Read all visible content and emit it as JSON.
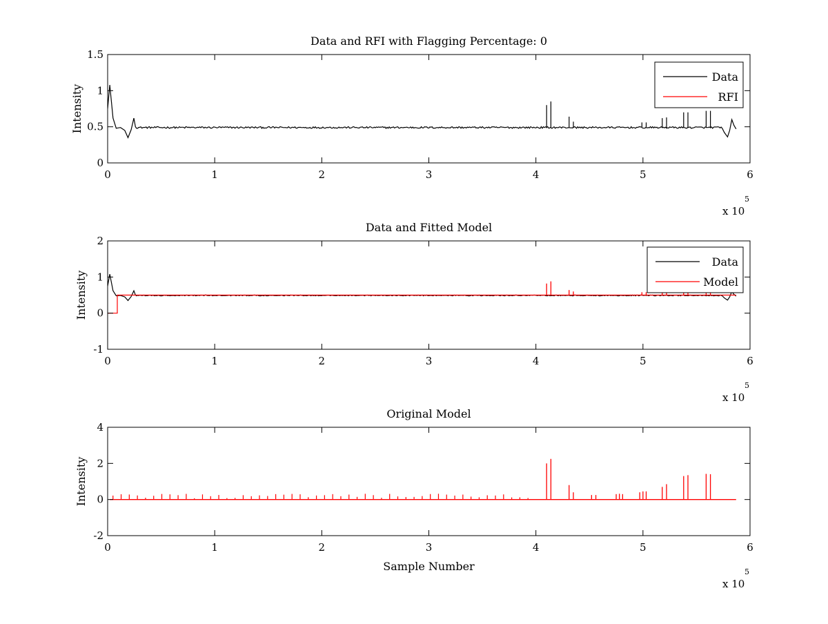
{
  "chart_data": [
    {
      "type": "line",
      "title": "Data and RFI with Flagging Percentage: 0",
      "xlabel": "",
      "ylabel": "Intensity",
      "xlim": [
        0,
        600000
      ],
      "ylim": [
        0,
        1.5
      ],
      "x_ticks": [
        "0",
        "1",
        "2",
        "3",
        "4",
        "5",
        "6"
      ],
      "y_ticks": [
        "0",
        "0.5",
        "1",
        "1.5"
      ],
      "x_multiplier": {
        "base": "x 10",
        "exponent": "5"
      },
      "legend": {
        "position": "top-right",
        "entries": [
          "Data",
          "RFI"
        ]
      },
      "series": [
        {
          "name": "Data",
          "color": "#000000",
          "baseline": 0.49,
          "noise": 0.012,
          "features": [
            {
              "x": 0,
              "y": 0.75
            },
            {
              "x": 2000,
              "y": 1.08
            },
            {
              "x": 5000,
              "y": 0.62
            },
            {
              "x": 8000,
              "y": 0.48
            },
            {
              "x": 12000,
              "y": 0.49
            },
            {
              "x": 16000,
              "y": 0.45
            },
            {
              "x": 19000,
              "y": 0.35
            },
            {
              "x": 22000,
              "y": 0.46
            },
            {
              "x": 24500,
              "y": 0.62
            },
            {
              "x": 26000,
              "y": 0.5
            },
            {
              "x": 574000,
              "y": 0.48
            },
            {
              "x": 576000,
              "y": 0.42
            },
            {
              "x": 579000,
              "y": 0.36
            },
            {
              "x": 581000,
              "y": 0.45
            },
            {
              "x": 583000,
              "y": 0.6
            },
            {
              "x": 585000,
              "y": 0.52
            },
            {
              "x": 587000,
              "y": 0.47
            }
          ],
          "spikes": [
            {
              "x": 410000,
              "y": 0.8
            },
            {
              "x": 414000,
              "y": 0.85
            },
            {
              "x": 431000,
              "y": 0.64
            },
            {
              "x": 435000,
              "y": 0.57
            },
            {
              "x": 499000,
              "y": 0.56
            },
            {
              "x": 503000,
              "y": 0.56
            },
            {
              "x": 518000,
              "y": 0.62
            },
            {
              "x": 522000,
              "y": 0.63
            },
            {
              "x": 538000,
              "y": 0.7
            },
            {
              "x": 542000,
              "y": 0.7
            },
            {
              "x": 559000,
              "y": 0.72
            },
            {
              "x": 563000,
              "y": 0.72
            }
          ]
        },
        {
          "name": "RFI",
          "color": "#ff0000",
          "values": []
        }
      ]
    },
    {
      "type": "line",
      "title": "Data and Fitted Model",
      "xlabel": "",
      "ylabel": "Intensity",
      "xlim": [
        0,
        600000
      ],
      "ylim": [
        -1,
        2
      ],
      "x_ticks": [
        "0",
        "1",
        "2",
        "3",
        "4",
        "5",
        "6"
      ],
      "y_ticks": [
        "-1",
        "0",
        "1",
        "2"
      ],
      "x_multiplier": {
        "base": "x 10",
        "exponent": "5"
      },
      "legend": {
        "position": "top-right",
        "entries": [
          "Data",
          "Model"
        ]
      },
      "series": [
        {
          "name": "Data",
          "color": "#000000",
          "baseline": 0.49,
          "noise": 0.012,
          "features": [
            {
              "x": 0,
              "y": 0.75
            },
            {
              "x": 2000,
              "y": 1.08
            },
            {
              "x": 5000,
              "y": 0.62
            },
            {
              "x": 8000,
              "y": 0.48
            },
            {
              "x": 12000,
              "y": 0.49
            },
            {
              "x": 16000,
              "y": 0.45
            },
            {
              "x": 19000,
              "y": 0.35
            },
            {
              "x": 22000,
              "y": 0.46
            },
            {
              "x": 24500,
              "y": 0.62
            },
            {
              "x": 26000,
              "y": 0.5
            },
            {
              "x": 574000,
              "y": 0.48
            },
            {
              "x": 576000,
              "y": 0.42
            },
            {
              "x": 579000,
              "y": 0.36
            },
            {
              "x": 581000,
              "y": 0.45
            },
            {
              "x": 583000,
              "y": 0.6
            },
            {
              "x": 585000,
              "y": 0.52
            },
            {
              "x": 587000,
              "y": 0.47
            }
          ],
          "spikes": []
        },
        {
          "name": "Model",
          "color": "#ff0000",
          "baseline": 0.5,
          "steps": [
            {
              "x": 0,
              "y": 0.0
            },
            {
              "x": 9000,
              "y": 0.0
            },
            {
              "x": 9000,
              "y": 0.5
            },
            {
              "x": 587000,
              "y": 0.5
            }
          ],
          "spikes": [
            {
              "x": 410000,
              "y": 0.82
            },
            {
              "x": 414000,
              "y": 0.88
            },
            {
              "x": 431000,
              "y": 0.64
            },
            {
              "x": 435000,
              "y": 0.6
            },
            {
              "x": 499000,
              "y": 0.58
            },
            {
              "x": 503000,
              "y": 0.58
            },
            {
              "x": 518000,
              "y": 0.6
            },
            {
              "x": 522000,
              "y": 0.6
            },
            {
              "x": 538000,
              "y": 0.62
            },
            {
              "x": 542000,
              "y": 0.62
            },
            {
              "x": 559000,
              "y": 0.63
            },
            {
              "x": 563000,
              "y": 0.63
            }
          ]
        }
      ]
    },
    {
      "type": "line",
      "title": "Original Model",
      "xlabel": "Sample Number",
      "ylabel": "Intensity",
      "xlim": [
        0,
        600000
      ],
      "ylim": [
        -2,
        4
      ],
      "x_ticks": [
        "0",
        "1",
        "2",
        "3",
        "4",
        "5",
        "6"
      ],
      "y_ticks": [
        "-2",
        "0",
        "2",
        "4"
      ],
      "x_multiplier": {
        "base": "x 10",
        "exponent": "5"
      },
      "series": [
        {
          "name": "",
          "color": "#ff0000",
          "baseline": 0.0,
          "range": [
            2000,
            587000
          ],
          "small_spikes": {
            "start": 5000,
            "step": 7600,
            "end": 400000,
            "min": 0.05,
            "max": 0.32
          },
          "spikes": [
            {
              "x": 410000,
              "y": 2.0
            },
            {
              "x": 414000,
              "y": 2.25
            },
            {
              "x": 431000,
              "y": 0.8
            },
            {
              "x": 435000,
              "y": 0.4
            },
            {
              "x": 452000,
              "y": 0.25
            },
            {
              "x": 456000,
              "y": 0.25
            },
            {
              "x": 475000,
              "y": 0.3
            },
            {
              "x": 478000,
              "y": 0.32
            },
            {
              "x": 481000,
              "y": 0.3
            },
            {
              "x": 497000,
              "y": 0.4
            },
            {
              "x": 500000,
              "y": 0.45
            },
            {
              "x": 503000,
              "y": 0.45
            },
            {
              "x": 518000,
              "y": 0.7
            },
            {
              "x": 522000,
              "y": 0.85
            },
            {
              "x": 538000,
              "y": 1.3
            },
            {
              "x": 542000,
              "y": 1.35
            },
            {
              "x": 559000,
              "y": 1.42
            },
            {
              "x": 563000,
              "y": 1.4
            }
          ]
        }
      ]
    }
  ]
}
